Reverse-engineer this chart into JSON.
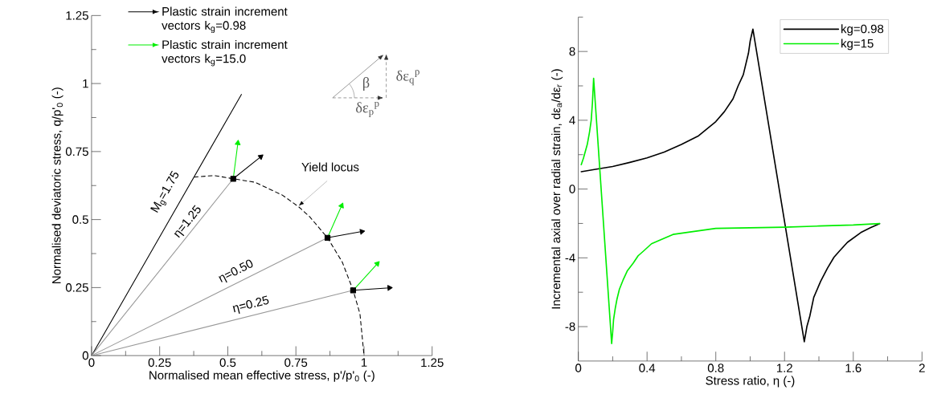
{
  "chart_data": [
    {
      "type": "line",
      "xlabel": "Normalised mean effective stress, p'/p'$_{0}$ (-)",
      "ylabel": "Normalised deviatoric stress, q/p'$_{0}$ (-)",
      "xlim": [
        0,
        1.25
      ],
      "ylim": [
        0,
        1.25
      ],
      "xticks": [
        0,
        {
          "value": 0.125,
          "label": null
        },
        0.25,
        {
          "value": 0.375,
          "label": null
        },
        0.5,
        {
          "value": 0.625,
          "label": null
        },
        0.75,
        {
          "value": 0.875,
          "label": null
        },
        1,
        {
          "value": 1.125,
          "label": null
        },
        1.25
      ],
      "yticks": [
        0,
        {
          "value": 0.125,
          "label": null
        },
        0.25,
        {
          "value": 0.375,
          "label": null
        },
        0.5,
        {
          "value": 0.625,
          "label": null
        },
        0.75,
        {
          "value": 0.875,
          "label": null
        },
        1,
        {
          "value": 1.125,
          "label": null
        },
        1.25
      ],
      "legend": "top left",
      "annotations": [
        "M$_{g}$=1.75",
        "η=1.25",
        "η=0.50",
        "η=0.25",
        {
          "text": "Yield locus",
          "x": 0.76,
          "y": 0.547
        },
        "β",
        "δε$_{q}$$^{p}$",
        "δε$_{p}$$^{p}$"
      ],
      "series": [
        {
          "color": "#000000",
          "x": [
            0,
            0.55
          ],
          "values": [
            0,
            0.96
          ]
        },
        {
          "color": "#999999",
          "x": [
            0,
            0.52
          ],
          "values": [
            0,
            0.65
          ]
        },
        {
          "color": "#999999",
          "x": [
            0,
            0.866
          ],
          "values": [
            0,
            0.433
          ]
        },
        {
          "color": "#999999",
          "x": [
            0,
            0.96
          ],
          "values": [
            0,
            0.24
          ]
        },
        {
          "color": "#000000",
          "line_style": "dashed",
          "x": [
            0.377,
            0.45,
            0.52,
            0.6,
            0.7,
            0.76,
            0.8,
            0.866,
            0.92,
            0.96,
            0.985,
            1.0
          ],
          "values": [
            0.656,
            0.662,
            0.65,
            0.637,
            0.59,
            0.547,
            0.511,
            0.433,
            0.344,
            0.24,
            0.154,
            0
          ]
        },
        {
          "type": "scatter",
          "marker": "square",
          "color": "#000000",
          "x": [
            0.52,
            0.866,
            0.96
          ],
          "values": [
            0.65,
            0.433,
            0.24
          ]
        },
        {
          "name": "Plastic strain increment vectors k$_{g}$=0.98",
          "marker": "triangle",
          "color": "#000000",
          "x": [
            0.52,
            0.621
          ],
          "values": [
            0.65,
            0.731
          ]
        },
        {
          "name": "Plastic strain increment vectors k$_{g}$=15.0",
          "marker": "triangle",
          "color": "#00ee00",
          "x": [
            0.52,
            0.537
          ],
          "values": [
            0.65,
            0.781
          ]
        },
        {
          "marker": "triangle",
          "color": "#000000",
          "x": [
            0.866,
            0.992
          ],
          "values": [
            0.433,
            0.456
          ]
        },
        {
          "marker": "triangle",
          "color": "#00ee00",
          "x": [
            0.866,
            0.918
          ],
          "values": [
            0.433,
            0.551
          ]
        },
        {
          "marker": "triangle",
          "color": "#000000",
          "x": [
            0.96,
            1.093
          ],
          "values": [
            0.24,
            0.249
          ]
        },
        {
          "marker": "triangle",
          "color": "#00ee00",
          "x": [
            0.96,
            1.049
          ],
          "values": [
            0.24,
            0.338
          ]
        }
      ]
    },
    {
      "type": "line",
      "xlabel": "Stress ratio, η (-)",
      "ylabel": "Incremental axial over radial strain, dε$_{a}$/dε$_{r}$ (-)",
      "xlim": [
        0,
        2
      ],
      "ylim": [
        -10,
        10
      ],
      "xticks": [
        0,
        {
          "value": 0.2,
          "label": null
        },
        0.4,
        {
          "value": 0.6,
          "label": null
        },
        0.8,
        {
          "value": 1.0,
          "label": null
        },
        1.2,
        {
          "value": 1.4,
          "label": null
        },
        1.6,
        {
          "value": 1.8,
          "label": null
        },
        2
      ],
      "yticks": [
        -8,
        {
          "value": -6,
          "label": null
        },
        -4,
        {
          "value": -2,
          "label": null
        },
        0,
        {
          "value": 2,
          "label": null
        },
        4,
        {
          "value": 6,
          "label": null
        },
        8,
        {
          "value": 10,
          "label": null
        }
      ],
      "legend": "top right",
      "series": [
        {
          "name": "kg=0.98",
          "color": "#000000",
          "x": [
            0.017,
            0.1,
            0.2,
            0.3,
            0.4,
            0.5,
            0.6,
            0.7,
            0.8,
            0.85,
            0.9,
            0.93,
            0.96,
            0.99,
            1.0,
            1.016,
            1.315,
            1.33,
            1.347,
            1.37,
            1.41,
            1.45,
            1.488,
            1.52,
            1.566,
            1.644,
            1.7,
            1.753
          ],
          "values": [
            1.01,
            1.15,
            1.31,
            1.55,
            1.81,
            2.15,
            2.59,
            3.1,
            3.92,
            4.5,
            5.24,
            6.0,
            6.65,
            7.9,
            8.6,
            9.3,
            -8.88,
            -8.0,
            -7.39,
            -6.3,
            -5.37,
            -4.6,
            -3.96,
            -3.6,
            -3.1,
            -2.53,
            -2.25,
            -2.01
          ]
        },
        {
          "name": "kg=15",
          "color": "#00ee00",
          "x": [
            0.017,
            0.03,
            0.052,
            0.065,
            0.075,
            0.082,
            0.089,
            0.194,
            0.2,
            0.205,
            0.215,
            0.225,
            0.239,
            0.26,
            0.286,
            0.32,
            0.348,
            0.38,
            0.426,
            0.48,
            0.551,
            0.65,
            0.8,
            1.0,
            1.2,
            1.4,
            1.6,
            1.753
          ],
          "values": [
            1.42,
            1.8,
            2.59,
            3.3,
            4.0,
            5.0,
            6.44,
            -8.99,
            -8.3,
            -7.6,
            -6.93,
            -6.4,
            -5.83,
            -5.3,
            -4.74,
            -4.3,
            -3.88,
            -3.6,
            -3.18,
            -2.95,
            -2.64,
            -2.5,
            -2.29,
            -2.25,
            -2.22,
            -2.15,
            -2.09,
            -2.01
          ]
        }
      ]
    }
  ]
}
